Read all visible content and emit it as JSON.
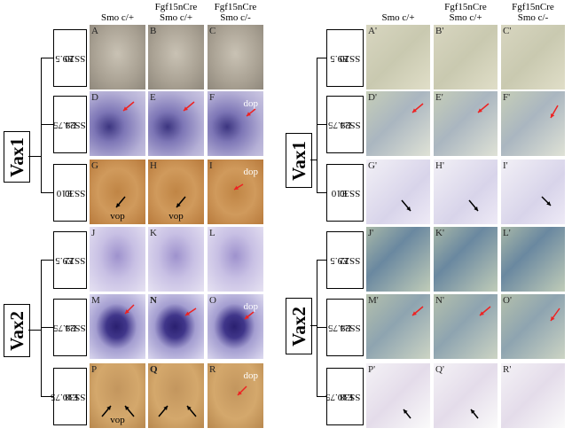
{
  "left": {
    "headers": [
      [
        "Smo c/+"
      ],
      [
        "Fgf15nCre",
        "Smo c/+"
      ],
      [
        "Fgf15nCre",
        "Smo c/-"
      ]
    ],
    "groups": [
      {
        "gene": "Vax1",
        "rows": [
          {
            "stage": [
              "E9.5",
              "SS20"
            ],
            "panels": [
              {
                "letter": "A"
              },
              {
                "letter": "B"
              },
              {
                "letter": "C"
              }
            ]
          },
          {
            "stage": [
              "E9.75",
              "SS24"
            ],
            "panels": [
              {
                "letter": "D"
              },
              {
                "letter": "E"
              },
              {
                "letter": "F",
                "label_top": "dop"
              }
            ]
          },
          {
            "stage": [
              "E10",
              "SS30"
            ],
            "panels": [
              {
                "letter": "G",
                "label_bottom": "vop"
              },
              {
                "letter": "H",
                "label_bottom": "vop"
              },
              {
                "letter": "I",
                "label_top": "dop"
              }
            ]
          }
        ]
      },
      {
        "gene": "Vax2",
        "rows": [
          {
            "stage": [
              "E9.5",
              "SS22"
            ],
            "panels": [
              {
                "letter": "J"
              },
              {
                "letter": "K"
              },
              {
                "letter": "L"
              }
            ]
          },
          {
            "stage": [
              "E9.75",
              "SS24"
            ],
            "panels": [
              {
                "letter": "M"
              },
              {
                "letter": "N"
              },
              {
                "letter": "O",
                "label_top": "dop"
              }
            ]
          },
          {
            "stage": [
              "E10.75",
              "SS38"
            ],
            "panels": [
              {
                "letter": "P",
                "label_bottom": "vop"
              },
              {
                "letter": "Q"
              },
              {
                "letter": "R",
                "label_top": "dop"
              }
            ]
          }
        ]
      }
    ]
  },
  "right": {
    "headers": [
      [
        "Smo c/+"
      ],
      [
        "Fgf15nCre",
        "Smo c/+"
      ],
      [
        "Fgf15nCre",
        "Smo c/-"
      ]
    ],
    "groups": [
      {
        "gene": "Vax1",
        "rows": [
          {
            "stage": [
              "E9.5",
              "SS20"
            ],
            "panels": [
              {
                "letter": "A'"
              },
              {
                "letter": "B'"
              },
              {
                "letter": "C'"
              }
            ]
          },
          {
            "stage": [
              "E9.75",
              "SS24"
            ],
            "panels": [
              {
                "letter": "D'"
              },
              {
                "letter": "E'"
              },
              {
                "letter": "F'"
              }
            ]
          },
          {
            "stage": [
              "E10",
              "SS30"
            ],
            "panels": [
              {
                "letter": "G'"
              },
              {
                "letter": "H'"
              },
              {
                "letter": "I'"
              }
            ]
          }
        ]
      },
      {
        "gene": "Vax2",
        "rows": [
          {
            "stage": [
              "E9.5",
              "SS22"
            ],
            "panels": [
              {
                "letter": "J'"
              },
              {
                "letter": "K'"
              },
              {
                "letter": "L'"
              }
            ]
          },
          {
            "stage": [
              "E9.75",
              "SS24"
            ],
            "panels": [
              {
                "letter": "M'"
              },
              {
                "letter": "N'"
              },
              {
                "letter": "O'"
              }
            ]
          },
          {
            "stage": [
              "E10.75",
              "SS38"
            ],
            "panels": [
              {
                "letter": "P'"
              },
              {
                "letter": "Q'"
              },
              {
                "letter": "R'"
              }
            ]
          }
        ]
      }
    ]
  }
}
